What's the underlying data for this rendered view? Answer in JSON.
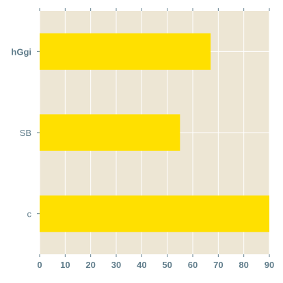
{
  "chart_data": {
    "type": "bar",
    "orientation": "horizontal",
    "categories": [
      "hGgi",
      "SB",
      "c"
    ],
    "values": [
      67,
      55,
      90
    ],
    "xlim": [
      0,
      90
    ],
    "xticks": [
      0,
      10,
      20,
      30,
      40,
      50,
      60,
      70,
      80,
      90
    ],
    "title": "",
    "xlabel": "",
    "ylabel": "",
    "grid": true,
    "colors": {
      "bar": "#ffe000",
      "background": "#ede6d4",
      "grid": "#ffffff",
      "text": "#607d8b"
    }
  }
}
